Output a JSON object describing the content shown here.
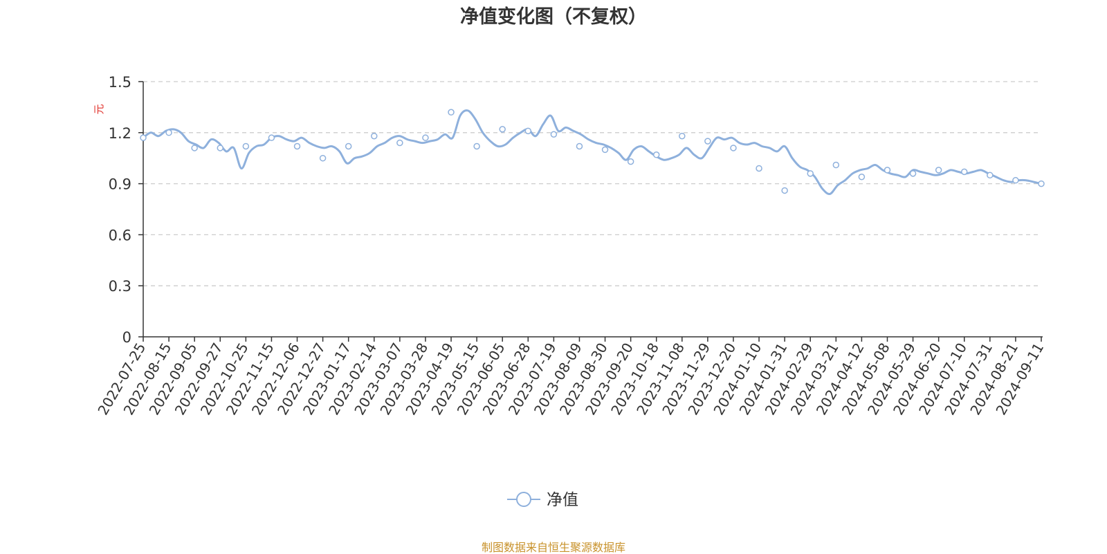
{
  "chart_data": {
    "type": "line",
    "title": "净值变化图（不复权）",
    "ylabel": "元",
    "ylim": [
      0,
      1.5
    ],
    "yticks": [
      "0",
      "0.3",
      "0.6",
      "0.9",
      "1.2",
      "1.5"
    ],
    "grid": true,
    "legend_position": "bottom-center",
    "x_ticks": [
      "2022-07-25",
      "2022-08-15",
      "2022-09-05",
      "2022-09-27",
      "2022-10-25",
      "2022-11-15",
      "2022-12-06",
      "2022-12-27",
      "2023-01-17",
      "2023-02-14",
      "2023-03-07",
      "2023-03-28",
      "2023-04-19",
      "2023-05-15",
      "2023-06-05",
      "2023-06-28",
      "2023-07-19",
      "2023-08-09",
      "2023-08-30",
      "2023-09-20",
      "2023-10-18",
      "2023-11-08",
      "2023-11-29",
      "2023-12-20",
      "2024-01-10",
      "2024-01-31",
      "2024-02-29",
      "2024-03-21",
      "2024-04-12",
      "2024-05-08",
      "2024-05-29",
      "2024-06-20",
      "2024-07-10",
      "2024-07-31",
      "2024-08-21",
      "2024-09-11"
    ],
    "series": [
      {
        "name": "净值",
        "color": "#8eb0dc",
        "values": [
          1.17,
          1.2,
          1.18,
          1.21,
          1.22,
          1.2,
          1.15,
          1.13,
          1.11,
          1.16,
          1.14,
          1.09,
          1.11,
          0.99,
          1.08,
          1.12,
          1.13,
          1.17,
          1.18,
          1.16,
          1.15,
          1.17,
          1.14,
          1.12,
          1.11,
          1.12,
          1.09,
          1.02,
          1.05,
          1.06,
          1.08,
          1.12,
          1.14,
          1.17,
          1.18,
          1.16,
          1.15,
          1.14,
          1.15,
          1.16,
          1.19,
          1.17,
          1.3,
          1.33,
          1.28,
          1.2,
          1.15,
          1.12,
          1.13,
          1.17,
          1.2,
          1.22,
          1.18,
          1.25,
          1.3,
          1.21,
          1.23,
          1.21,
          1.19,
          1.16,
          1.14,
          1.13,
          1.11,
          1.08,
          1.04,
          1.1,
          1.12,
          1.09,
          1.06,
          1.04,
          1.05,
          1.07,
          1.11,
          1.07,
          1.05,
          1.11,
          1.17,
          1.16,
          1.17,
          1.14,
          1.13,
          1.14,
          1.12,
          1.11,
          1.09,
          1.12,
          1.05,
          1.0,
          0.98,
          0.94,
          0.87,
          0.84,
          0.89,
          0.92,
          0.96,
          0.98,
          0.99,
          1.01,
          0.98,
          0.96,
          0.95,
          0.94,
          0.98,
          0.97,
          0.96,
          0.95,
          0.96,
          0.98,
          0.97,
          0.96,
          0.97,
          0.98,
          0.96,
          0.94,
          0.92,
          0.91,
          0.92,
          0.92,
          0.91,
          0.9
        ],
        "markers": [
          1.17,
          1.2,
          1.11,
          1.11,
          1.12,
          1.17,
          1.12,
          1.05,
          1.12,
          1.18,
          1.14,
          1.17,
          1.32,
          1.12,
          1.22,
          1.21,
          1.19,
          1.12,
          1.1,
          1.03,
          1.07,
          1.18,
          1.15,
          1.11,
          0.99,
          0.86,
          0.96,
          1.01,
          0.94,
          0.98,
          0.96,
          0.98,
          0.97,
          0.95,
          0.92,
          0.9
        ]
      }
    ]
  },
  "footer": {
    "source": "制图数据来自恒生聚源数据库"
  }
}
